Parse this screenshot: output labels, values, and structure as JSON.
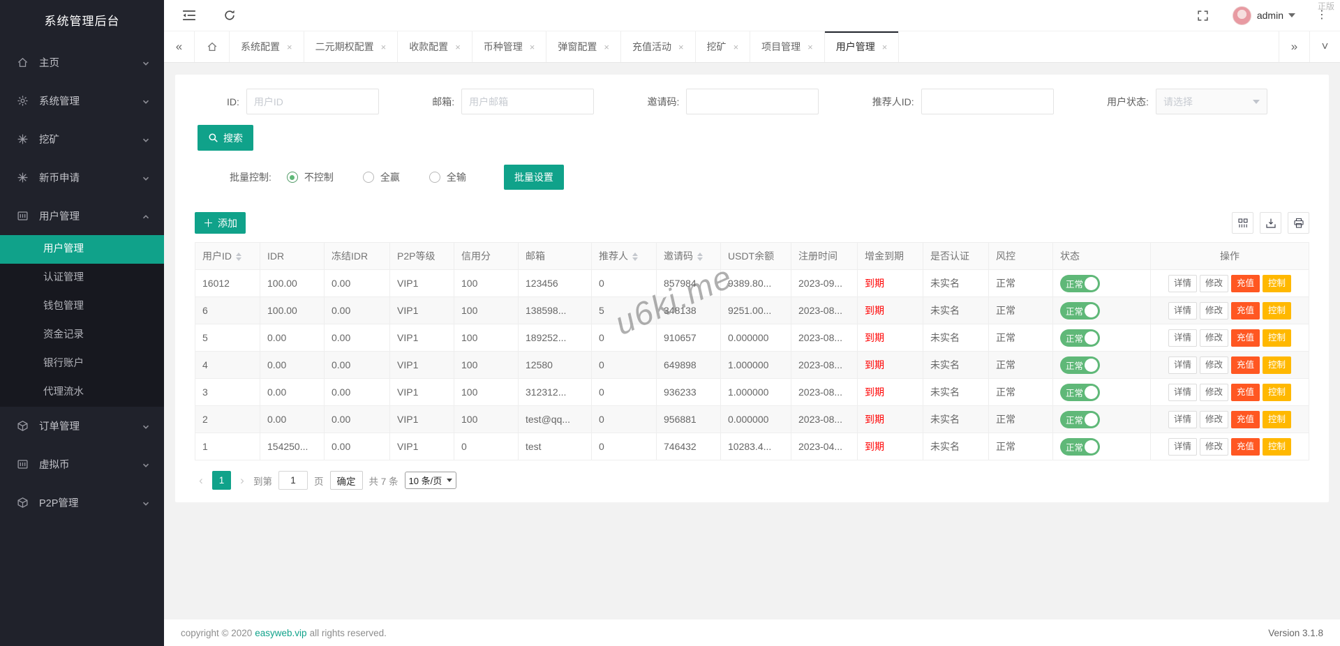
{
  "app": {
    "watermark": "u6ki.me",
    "corner_watermark": "正版",
    "version": "Version 3.1.8",
    "copyright_prefix": "copyright © 2020",
    "copyright_link": "easyweb.vip",
    "copyright_suffix": "all rights reserved."
  },
  "colors": {
    "accent_teal": "#10a28a",
    "toggle_green": "#5fb878",
    "recharge_orange": "#ff5722",
    "control_amber": "#ffb800",
    "expire_red": "#ff0000",
    "sidebar_bg": "#20222b"
  },
  "sidebar": {
    "title": "系统管理后台",
    "items": [
      {
        "label": "主页",
        "icon": "home-icon"
      },
      {
        "label": "系统管理",
        "icon": "gear-icon"
      },
      {
        "label": "挖矿",
        "icon": "mining-icon"
      },
      {
        "label": "新币申请",
        "icon": "new-coin-icon"
      },
      {
        "label": "用户管理",
        "icon": "users-icon",
        "expanded": true,
        "children": [
          {
            "label": "用户管理",
            "active": true
          },
          {
            "label": "认证管理"
          },
          {
            "label": "钱包管理"
          },
          {
            "label": "资金记录"
          },
          {
            "label": "银行账户"
          },
          {
            "label": "代理流水"
          }
        ]
      },
      {
        "label": "订单管理",
        "icon": "orders-icon"
      },
      {
        "label": "虚拟币",
        "icon": "coin-icon"
      },
      {
        "label": "P2P管理",
        "icon": "p2p-icon"
      }
    ]
  },
  "topbar": {
    "user": "admin"
  },
  "tabs": {
    "items": [
      {
        "label": "系统配置"
      },
      {
        "label": "二元期权配置"
      },
      {
        "label": "收款配置"
      },
      {
        "label": "币种管理"
      },
      {
        "label": "弹窗配置"
      },
      {
        "label": "充值活动"
      },
      {
        "label": "挖矿"
      },
      {
        "label": "项目管理"
      },
      {
        "label": "用户管理",
        "active": true
      }
    ]
  },
  "search_form": {
    "fields": [
      {
        "label": "ID:",
        "placeholder": "用户ID",
        "value": "",
        "type": "input"
      },
      {
        "label": "邮箱:",
        "placeholder": "用户邮箱",
        "value": "",
        "type": "input"
      },
      {
        "label": "邀请码:",
        "placeholder": "",
        "value": "",
        "type": "input"
      },
      {
        "label": "推荐人ID:",
        "placeholder": "",
        "value": "",
        "type": "input"
      },
      {
        "label": "用户状态:",
        "placeholder": "请选择",
        "value": "",
        "type": "select"
      }
    ],
    "search_label": "搜索"
  },
  "batch": {
    "label": "批量控制:",
    "options": [
      {
        "label": "不控制",
        "checked": true
      },
      {
        "label": "全赢",
        "checked": false
      },
      {
        "label": "全输",
        "checked": false
      }
    ],
    "button_label": "批量设置"
  },
  "table": {
    "add_label": "添加",
    "toolbar_icons": [
      "columns-icon",
      "export-icon",
      "print-icon"
    ],
    "columns": [
      {
        "label": "用户ID",
        "sortable": true
      },
      {
        "label": "IDR",
        "sortable": false
      },
      {
        "label": "冻结IDR",
        "sortable": false
      },
      {
        "label": "P2P等级",
        "sortable": false
      },
      {
        "label": "信用分",
        "sortable": false
      },
      {
        "label": "邮箱",
        "sortable": false
      },
      {
        "label": "推荐人",
        "sortable": true
      },
      {
        "label": "邀请码",
        "sortable": true
      },
      {
        "label": "USDT余额",
        "sortable": false
      },
      {
        "label": "注册时间",
        "sortable": false
      },
      {
        "label": "增金到期",
        "sortable": false
      },
      {
        "label": "是否认证",
        "sortable": false
      },
      {
        "label": "风控",
        "sortable": false
      },
      {
        "label": "状态",
        "sortable": false
      },
      {
        "label": "操作",
        "sortable": false
      }
    ],
    "rows": [
      {
        "user_id": "16012",
        "idr": "100.00",
        "frozen_idr": "0.00",
        "p2p_level": "VIP1",
        "credit": "100",
        "email": "123456",
        "referrer": "0",
        "invite_code": "857984",
        "usdt": "9389.80...",
        "reg_time": "2023-09...",
        "bonus_expire": "到期",
        "verified": "未实名",
        "risk": "正常",
        "status": "正常"
      },
      {
        "user_id": "6",
        "idr": "100.00",
        "frozen_idr": "0.00",
        "p2p_level": "VIP1",
        "credit": "100",
        "email": "138598...",
        "referrer": "5",
        "invite_code": "348138",
        "usdt": "9251.00...",
        "reg_time": "2023-08...",
        "bonus_expire": "到期",
        "verified": "未实名",
        "risk": "正常",
        "status": "正常"
      },
      {
        "user_id": "5",
        "idr": "0.00",
        "frozen_idr": "0.00",
        "p2p_level": "VIP1",
        "credit": "100",
        "email": "189252...",
        "referrer": "0",
        "invite_code": "910657",
        "usdt": "0.000000",
        "reg_time": "2023-08...",
        "bonus_expire": "到期",
        "verified": "未实名",
        "risk": "正常",
        "status": "正常"
      },
      {
        "user_id": "4",
        "idr": "0.00",
        "frozen_idr": "0.00",
        "p2p_level": "VIP1",
        "credit": "100",
        "email": "12580",
        "referrer": "0",
        "invite_code": "649898",
        "usdt": "1.000000",
        "reg_time": "2023-08...",
        "bonus_expire": "到期",
        "verified": "未实名",
        "risk": "正常",
        "status": "正常"
      },
      {
        "user_id": "3",
        "idr": "0.00",
        "frozen_idr": "0.00",
        "p2p_level": "VIP1",
        "credit": "100",
        "email": "312312...",
        "referrer": "0",
        "invite_code": "936233",
        "usdt": "1.000000",
        "reg_time": "2023-08...",
        "bonus_expire": "到期",
        "verified": "未实名",
        "risk": "正常",
        "status": "正常"
      },
      {
        "user_id": "2",
        "idr": "0.00",
        "frozen_idr": "0.00",
        "p2p_level": "VIP1",
        "credit": "100",
        "email": "test@qq...",
        "referrer": "0",
        "invite_code": "956881",
        "usdt": "0.000000",
        "reg_time": "2023-08...",
        "bonus_expire": "到期",
        "verified": "未实名",
        "risk": "正常",
        "status": "正常"
      },
      {
        "user_id": "1",
        "idr": "154250...",
        "frozen_idr": "0.00",
        "p2p_level": "VIP1",
        "credit": "0",
        "email": "test",
        "referrer": "0",
        "invite_code": "746432",
        "usdt": "10283.4...",
        "reg_time": "2023-04...",
        "bonus_expire": "到期",
        "verified": "未实名",
        "risk": "正常",
        "status": "正常"
      }
    ],
    "actions": [
      {
        "label": "详情",
        "style": "plain"
      },
      {
        "label": "修改",
        "style": "plain"
      },
      {
        "label": "充值",
        "style": "orange"
      },
      {
        "label": "控制",
        "style": "amber"
      }
    ]
  },
  "pagination": {
    "current": "1",
    "goto_prefix": "到第",
    "goto_value": "1",
    "goto_suffix": "页",
    "confirm_label": "确定",
    "total_label": "共 7 条",
    "page_size_label": "10 条/页"
  }
}
